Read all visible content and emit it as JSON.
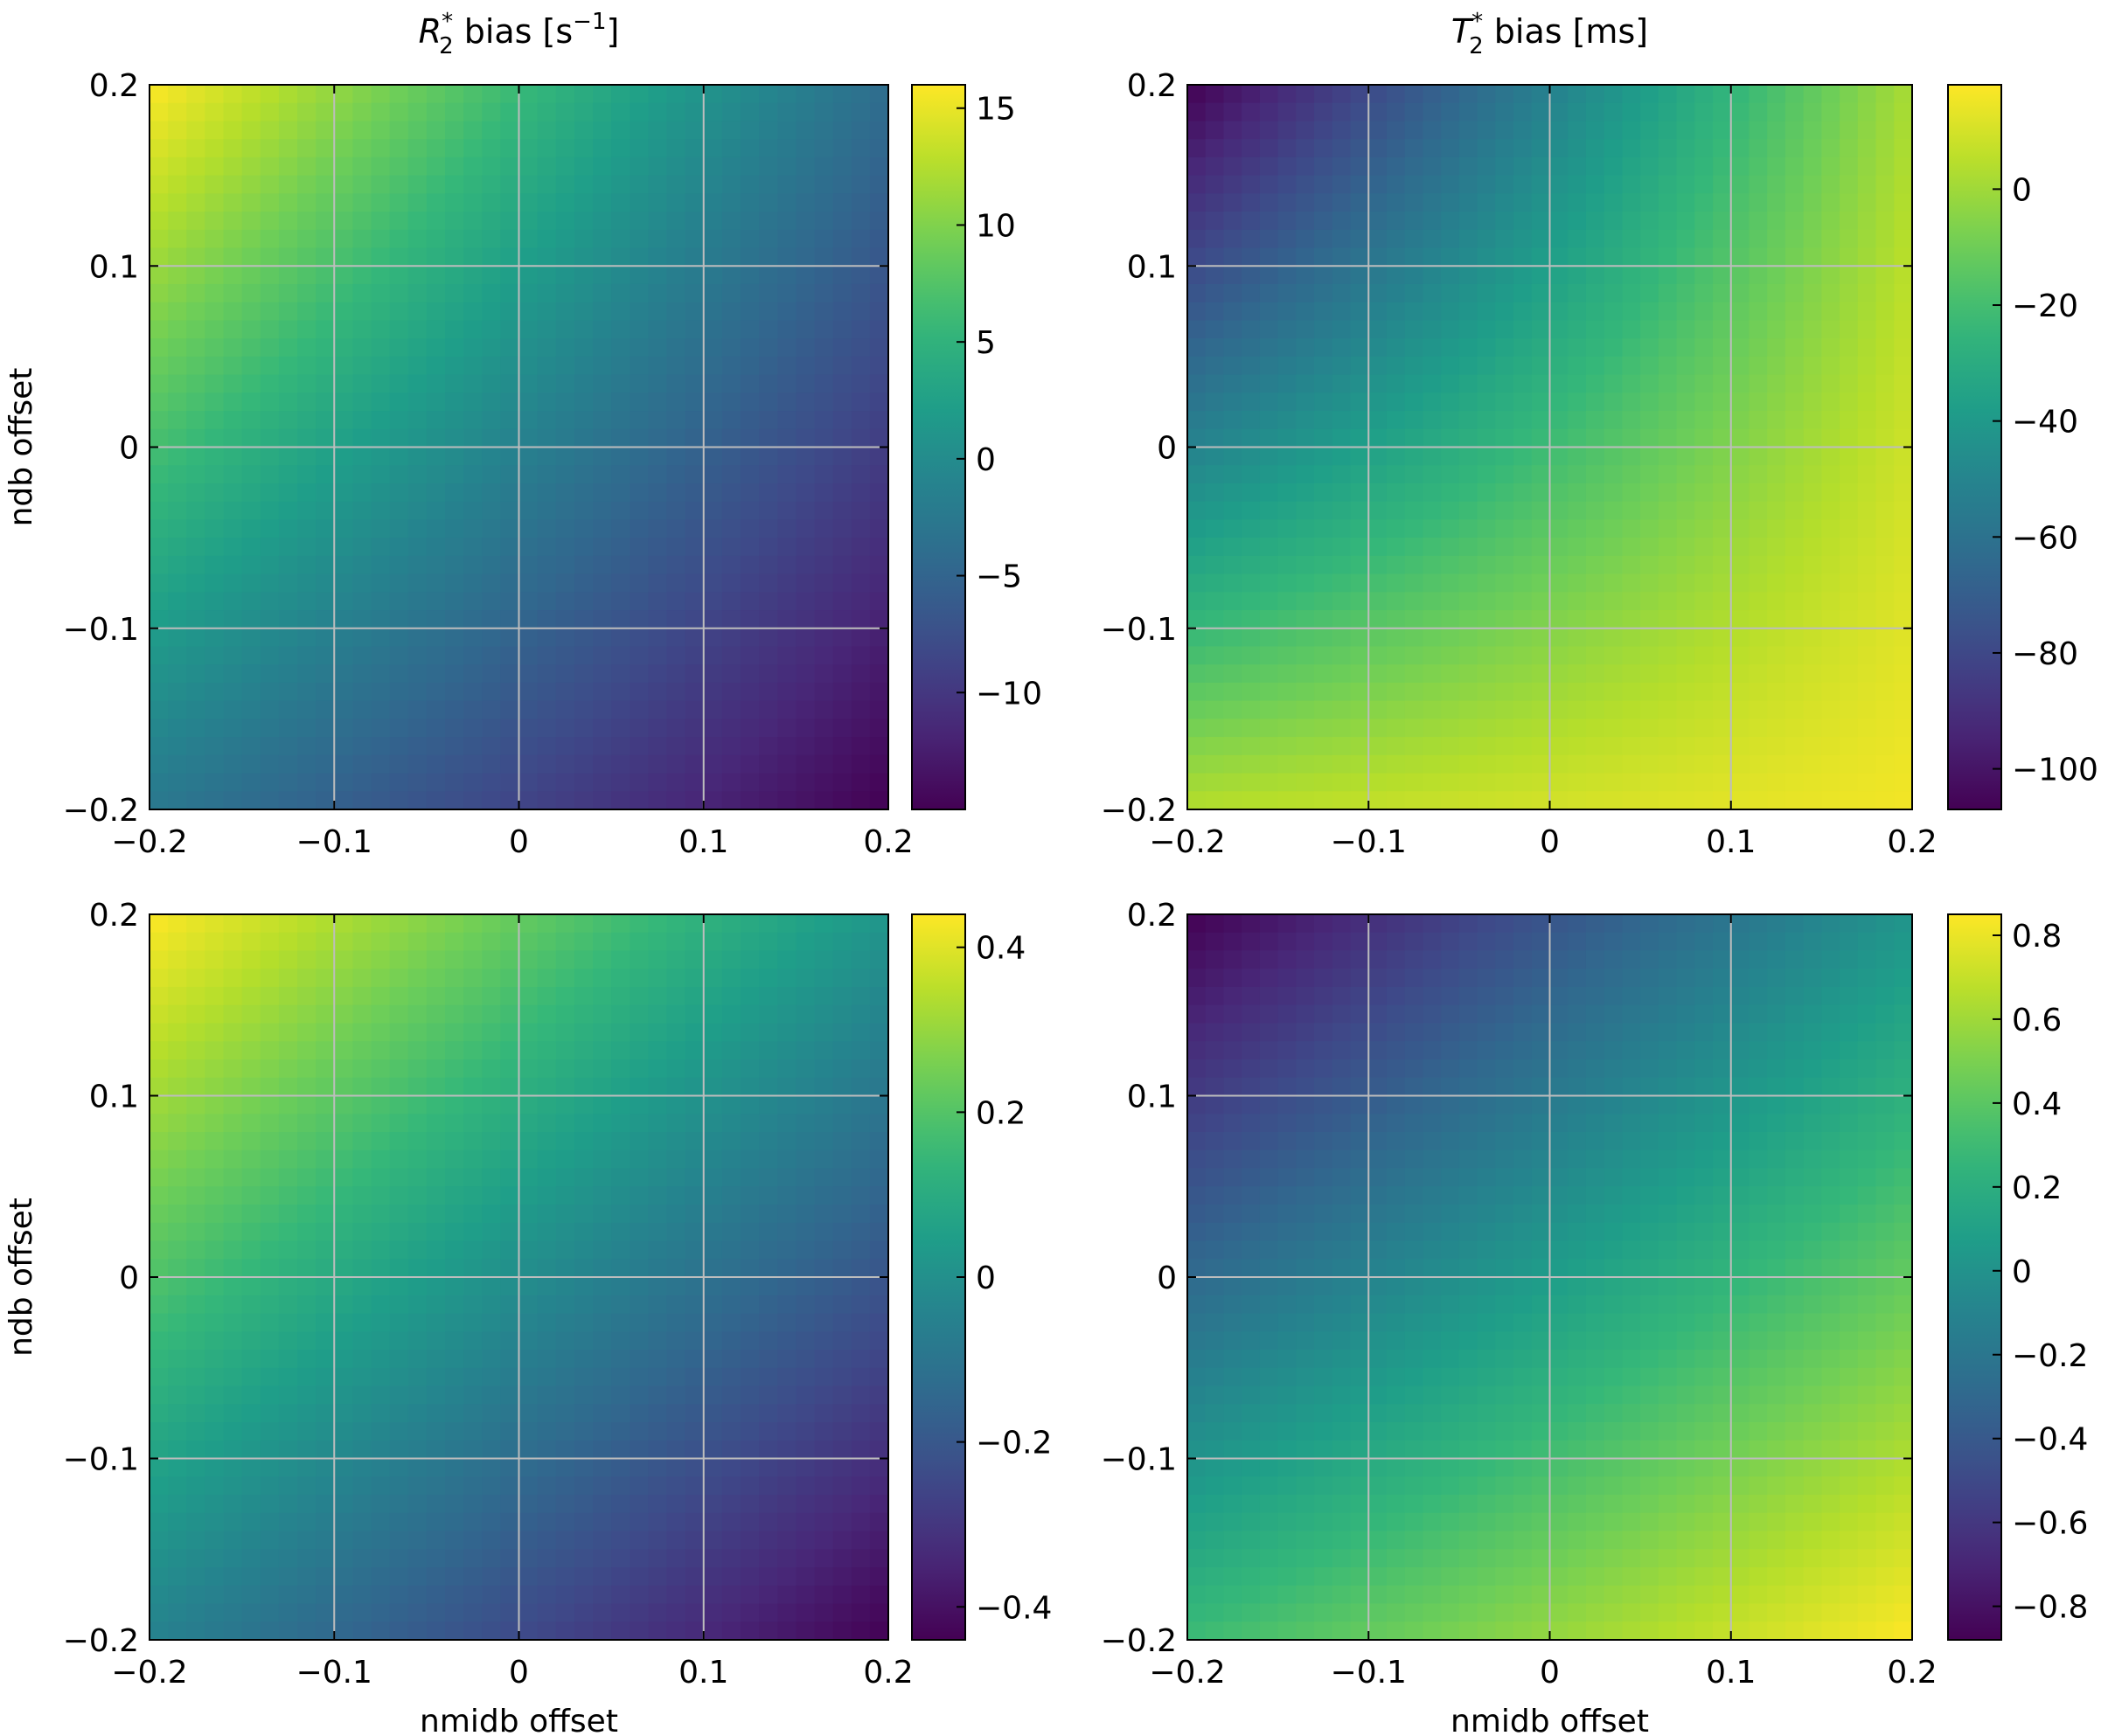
{
  "figure": {
    "colormap": "viridis",
    "grid": true
  },
  "chart_data": [
    {
      "type": "heatmap",
      "title_parts": {
        "symbol": "R",
        "sub": "2",
        "sup": "*",
        "text": " bias [s",
        "unit_sup": "−1",
        "close": "]"
      },
      "xlabel": "",
      "ylabel": "ndb offset",
      "x_range": [
        -0.2,
        0.2
      ],
      "y_range": [
        -0.2,
        0.2
      ],
      "x_ticks": [
        "−0.2",
        "−0.1",
        "0",
        "0.1",
        "0.2"
      ],
      "x_tick_values": [
        -0.2,
        -0.1,
        0,
        0.1,
        0.2
      ],
      "y_ticks": [
        "−0.2",
        "−0.1",
        "0",
        "0.1",
        "0.2"
      ],
      "y_tick_values": [
        -0.2,
        -0.1,
        0,
        0.1,
        0.2
      ],
      "corner_values": {
        "x-0.2_y0.2": 16,
        "x0.2_y0.2": -4,
        "x-0.2_y-0.2": -2.5,
        "x0.2_y-0.2": -15
      },
      "colorbar": {
        "range": [
          -15,
          16
        ],
        "ticks": [
          "−10",
          "−5",
          "0",
          "5",
          "10",
          "15"
        ],
        "tick_values": [
          -10,
          -5,
          0,
          5,
          10,
          15
        ]
      }
    },
    {
      "type": "heatmap",
      "title_parts": {
        "symbol": "T",
        "sub": "2",
        "sup": "*",
        "text": " bias [ms]"
      },
      "xlabel": "",
      "ylabel": "",
      "x_range": [
        -0.2,
        0.2
      ],
      "y_range": [
        -0.2,
        0.2
      ],
      "x_ticks": [
        "−0.2",
        "−0.1",
        "0",
        "0.1",
        "0.2"
      ],
      "x_tick_values": [
        -0.2,
        -0.1,
        0,
        0.1,
        0.2
      ],
      "y_ticks": [
        "−0.2",
        "−0.1",
        "0",
        "0.1",
        "0.2"
      ],
      "y_tick_values": [
        -0.2,
        -0.1,
        0,
        0.1,
        0.2
      ],
      "corner_values": {
        "x-0.2_y0.2": -107,
        "x0.2_y0.2": 2,
        "x-0.2_y-0.2": 4,
        "x0.2_y-0.2": 16
      },
      "colorbar": {
        "range": [
          -107,
          18
        ],
        "ticks": [
          "−100",
          "−80",
          "−60",
          "−40",
          "−20",
          "0"
        ],
        "tick_values": [
          -100,
          -80,
          -60,
          -40,
          -20,
          0
        ]
      }
    },
    {
      "type": "heatmap",
      "title_parts": null,
      "xlabel": "nmidb offset",
      "ylabel": "ndb offset",
      "x_range": [
        -0.2,
        0.2
      ],
      "y_range": [
        -0.2,
        0.2
      ],
      "x_ticks": [
        "−0.2",
        "−0.1",
        "0",
        "0.1",
        "0.2"
      ],
      "x_tick_values": [
        -0.2,
        -0.1,
        0,
        0.1,
        0.2
      ],
      "y_ticks": [
        "−0.2",
        "−0.1",
        "0",
        "0.1",
        "0.2"
      ],
      "y_tick_values": [
        -0.2,
        -0.1,
        0,
        0.1,
        0.2
      ],
      "corner_values": {
        "x-0.2_y0.2": 0.44,
        "x0.2_y0.2": 0.02,
        "x-0.2_y-0.2": -0.05,
        "x0.2_y-0.2": -0.44
      },
      "colorbar": {
        "range": [
          -0.44,
          0.44
        ],
        "ticks": [
          "−0.4",
          "−0.2",
          "0",
          "0.2",
          "0.4"
        ],
        "tick_values": [
          -0.4,
          -0.2,
          0,
          0.2,
          0.4
        ]
      }
    },
    {
      "type": "heatmap",
      "title_parts": null,
      "xlabel": "nmidb offset",
      "ylabel": "",
      "x_range": [
        -0.2,
        0.2
      ],
      "y_range": [
        -0.2,
        0.2
      ],
      "x_ticks": [
        "−0.2",
        "−0.1",
        "0",
        "0.1",
        "0.2"
      ],
      "x_tick_values": [
        -0.2,
        -0.1,
        0,
        0.1,
        0.2
      ],
      "y_ticks": [
        "−0.2",
        "−0.1",
        "0",
        "0.1",
        "0.2"
      ],
      "y_tick_values": [
        -0.2,
        -0.1,
        0,
        0.1,
        0.2
      ],
      "corner_values": {
        "x-0.2_y0.2": -0.88,
        "x0.2_y0.2": 0.02,
        "x-0.2_y-0.2": 0.3,
        "x0.2_y-0.2": 0.85
      },
      "colorbar": {
        "range": [
          -0.88,
          0.85
        ],
        "ticks": [
          "−0.8",
          "−0.6",
          "−0.4",
          "−0.2",
          "0",
          "0.2",
          "0.4",
          "0.6",
          "0.8"
        ],
        "tick_values": [
          -0.8,
          -0.6,
          -0.4,
          -0.2,
          0,
          0.2,
          0.4,
          0.6,
          0.8
        ]
      }
    }
  ]
}
